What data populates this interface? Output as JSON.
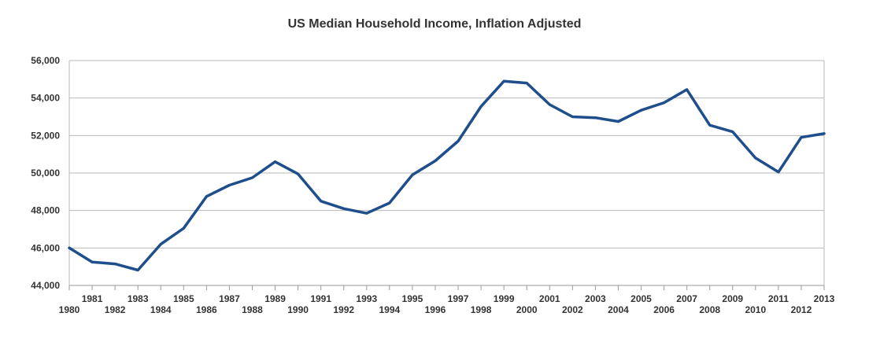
{
  "chart_data": {
    "type": "line",
    "title": "US Median Household Income, Inflation Adjusted",
    "xlabel": "",
    "ylabel": "",
    "ylim": [
      44000,
      56000
    ],
    "yticks": [
      "44,000",
      "46,000",
      "48,000",
      "50,000",
      "52,000",
      "54,000",
      "56,000"
    ],
    "ytick_values": [
      44000,
      46000,
      48000,
      50000,
      52000,
      54000,
      56000
    ],
    "grid": true,
    "legend": "none",
    "line_color": "#1f4e8c",
    "x": [
      "1980",
      "1981",
      "1982",
      "1983",
      "1984",
      "1985",
      "1986",
      "1987",
      "1988",
      "1989",
      "1990",
      "1991",
      "1992",
      "1993",
      "1994",
      "1995",
      "1996",
      "1997",
      "1998",
      "1999",
      "2000",
      "2001",
      "2002",
      "2003",
      "2004",
      "2005",
      "2006",
      "2007",
      "2008",
      "2009",
      "2010",
      "2011",
      "2012",
      "2013"
    ],
    "series": [
      {
        "values": [
          46000,
          45250,
          45150,
          44820,
          46200,
          47050,
          48750,
          49350,
          49750,
          50600,
          49950,
          48500,
          48100,
          47850,
          48400,
          49900,
          50650,
          51700,
          53550,
          54900,
          54800,
          53650,
          53000,
          52950,
          52750,
          53350,
          53750,
          54450,
          52550,
          52200,
          50800,
          50050,
          51900,
          52100
        ]
      }
    ]
  }
}
